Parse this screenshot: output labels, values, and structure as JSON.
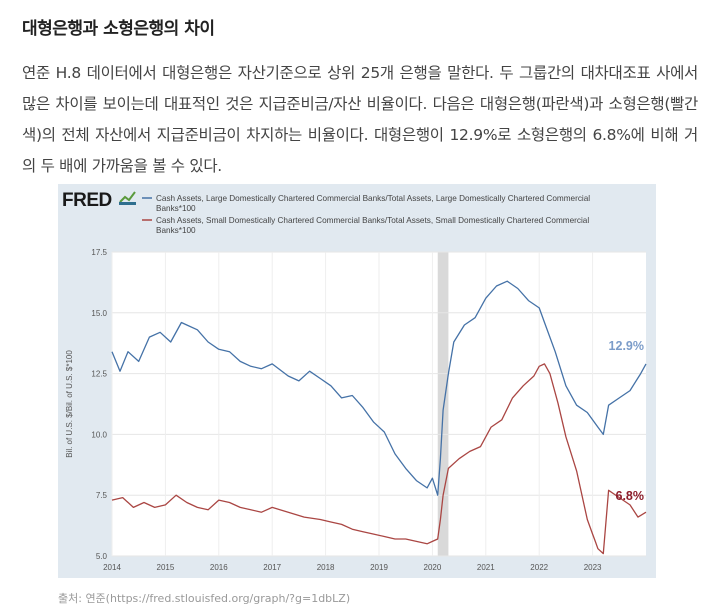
{
  "article": {
    "title": "대형은행과 소형은행의 차이",
    "paragraph": "연준 H.8 데이터에서 대형은행은 자산기준으로 상위 25개 은행을 말한다. 두 그룹간의 대차대조표 사에서 많은 차이를 보이는데 대표적인 것은 지급준비금/자산 비율이다. 다음은 대형은행(파란색)과 소형은행(빨간색)의 전체 자산에서 지급준비금이 차지하는 비율이다. 대형은행이 12.9%로 소형은행의 6.8%에 비해 거의 두 배에 가까움을 볼 수 있다.",
    "source": "출처: 연준(https://fred.stlouisfed.org/graph/?g=1dbLZ)"
  },
  "chart_data": {
    "type": "line",
    "logo": "FRED",
    "ylabel": "Bil. of U.S. $/Bil. of U.S. $*100",
    "ylim": [
      5.0,
      17.5
    ],
    "yticks": [
      "5.0",
      "7.5",
      "10.0",
      "12.5",
      "15.0",
      "17.5"
    ],
    "xlim": [
      2014.0,
      2024.0
    ],
    "xticks": [
      "2014",
      "2015",
      "2016",
      "2017",
      "2018",
      "2019",
      "2020",
      "2021",
      "2022",
      "2023"
    ],
    "recession": [
      2020.1,
      2020.3
    ],
    "grid": true,
    "legend_position": "top",
    "series": [
      {
        "name": "Cash Assets, Large Domestically Chartered Commercial Banks/Total Assets, Large Domestically Chartered Commercial Banks*100",
        "color": "#4572a7",
        "end_label": "12.9%",
        "x": [
          2014.0,
          2014.15,
          2014.3,
          2014.5,
          2014.7,
          2014.9,
          2015.1,
          2015.3,
          2015.4,
          2015.6,
          2015.8,
          2016.0,
          2016.2,
          2016.4,
          2016.6,
          2016.8,
          2017.0,
          2017.3,
          2017.5,
          2017.7,
          2017.9,
          2018.1,
          2018.3,
          2018.5,
          2018.7,
          2018.9,
          2019.1,
          2019.3,
          2019.5,
          2019.7,
          2019.9,
          2020.0,
          2020.1,
          2020.15,
          2020.2,
          2020.3,
          2020.4,
          2020.6,
          2020.8,
          2021.0,
          2021.2,
          2021.4,
          2021.6,
          2021.8,
          2022.0,
          2022.1,
          2022.3,
          2022.5,
          2022.7,
          2022.9,
          2023.1,
          2023.2,
          2023.3,
          2023.5,
          2023.7,
          2023.9,
          2024.0
        ],
        "y": [
          13.4,
          12.6,
          13.4,
          13.0,
          14.0,
          14.2,
          13.8,
          14.6,
          14.5,
          14.3,
          13.8,
          13.5,
          13.4,
          13.0,
          12.8,
          12.7,
          12.9,
          12.4,
          12.2,
          12.6,
          12.3,
          12.0,
          11.5,
          11.6,
          11.1,
          10.5,
          10.1,
          9.2,
          8.6,
          8.1,
          7.8,
          8.2,
          7.5,
          9.0,
          11.0,
          12.5,
          13.8,
          14.5,
          14.8,
          15.6,
          16.1,
          16.3,
          16.0,
          15.5,
          15.2,
          14.6,
          13.4,
          12.0,
          11.2,
          10.9,
          10.3,
          10.0,
          11.2,
          11.5,
          11.8,
          12.5,
          12.9
        ]
      },
      {
        "name": "Cash Assets, Small Domestically Chartered Commercial Banks/Total Assets, Small Domestically Chartered Commercial Banks*100",
        "color": "#aa4643",
        "end_label": "6.8%",
        "x": [
          2014.0,
          2014.2,
          2014.4,
          2014.6,
          2014.8,
          2015.0,
          2015.2,
          2015.4,
          2015.6,
          2015.8,
          2016.0,
          2016.2,
          2016.4,
          2016.6,
          2016.8,
          2017.0,
          2017.3,
          2017.6,
          2017.9,
          2018.1,
          2018.3,
          2018.5,
          2018.7,
          2018.9,
          2019.1,
          2019.3,
          2019.5,
          2019.7,
          2019.9,
          2020.0,
          2020.1,
          2020.15,
          2020.2,
          2020.3,
          2020.5,
          2020.7,
          2020.9,
          2021.1,
          2021.3,
          2021.5,
          2021.7,
          2021.9,
          2022.0,
          2022.1,
          2022.2,
          2022.35,
          2022.5,
          2022.7,
          2022.9,
          2023.0,
          2023.05,
          2023.1,
          2023.2,
          2023.3,
          2023.5,
          2023.7,
          2023.85,
          2024.0
        ],
        "y": [
          7.3,
          7.4,
          7.0,
          7.2,
          7.0,
          7.1,
          7.5,
          7.2,
          7.0,
          6.9,
          7.3,
          7.2,
          7.0,
          6.9,
          6.8,
          7.0,
          6.8,
          6.6,
          6.5,
          6.4,
          6.3,
          6.1,
          6.0,
          5.9,
          5.8,
          5.7,
          5.7,
          5.6,
          5.5,
          5.6,
          5.7,
          6.5,
          7.5,
          8.6,
          9.0,
          9.3,
          9.5,
          10.3,
          10.6,
          11.5,
          12.0,
          12.4,
          12.8,
          12.9,
          12.5,
          11.3,
          9.9,
          8.5,
          6.5,
          5.9,
          5.6,
          5.3,
          5.1,
          7.7,
          7.4,
          7.1,
          6.6,
          6.8
        ]
      }
    ]
  }
}
